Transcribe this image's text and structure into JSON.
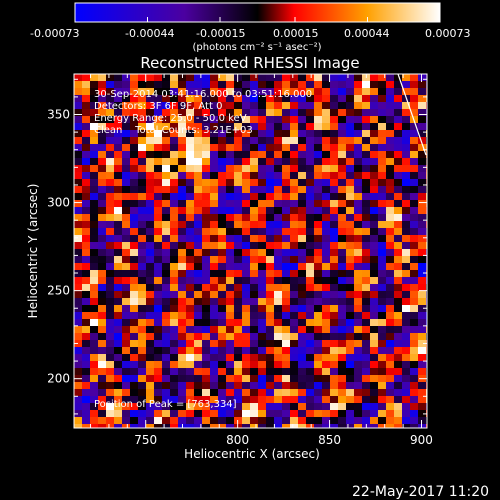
{
  "colorbar": {
    "ticks": [
      "-0.00073",
      "-0.00044",
      "-0.00015",
      "0.00015",
      "0.00044",
      "0.00073"
    ],
    "tick_values": [
      -0.00073,
      -0.00044,
      -0.00015,
      0.00015,
      0.00044,
      0.00073
    ],
    "unit_label": "(photons cm⁻² s⁻¹ asec⁻²)",
    "colormap": [
      "#0000ff",
      "#4b00a0",
      "#000000",
      "#ff0000",
      "#ffa000",
      "#ffffff"
    ]
  },
  "chart_data": {
    "type": "heatmap",
    "title": "Reconstructed RHESSI Image",
    "xlabel": "Heliocentric X (arcsec)",
    "ylabel": "Heliocentric Y (arcsec)",
    "xlim": [
      711,
      903
    ],
    "ylim": [
      172,
      373
    ],
    "x_ticks": [
      750,
      800,
      850,
      900
    ],
    "y_ticks": [
      200,
      250,
      300,
      350
    ],
    "x_tick_labels": [
      "750",
      "800",
      "850",
      "900"
    ],
    "y_tick_labels": [
      "200",
      "250",
      "300",
      "350"
    ],
    "annotations": [
      "30-Sep-2014 03:41:16.000 to 03:51:16.000",
      "Detectors: 3F 6F 9F, Att 0",
      "Energy Range: 25.0 - 50.0 keV",
      "Clean    Total Counts: 3.21E+03",
      "Position of Peak = [763,334]"
    ],
    "peak_position": [
      763,
      334
    ],
    "value_range": [
      -0.00073,
      0.00073
    ],
    "grid": false
  },
  "footer": {
    "timestamp": "22-May-2017 11:20"
  }
}
